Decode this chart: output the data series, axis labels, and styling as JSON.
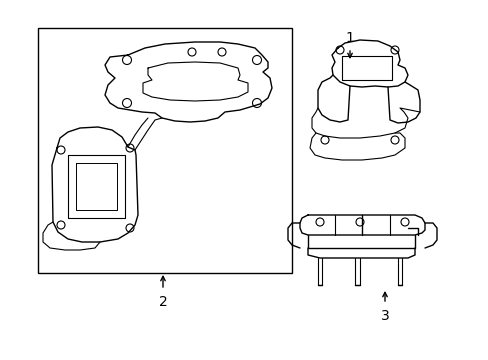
{
  "background_color": "#ffffff",
  "line_color": "#000000",
  "line_width": 1.0,
  "fig_width": 4.89,
  "fig_height": 3.6,
  "dpi": 100,
  "label_1": "1",
  "label_2": "2",
  "label_3": "3",
  "label_fontsize": 10
}
